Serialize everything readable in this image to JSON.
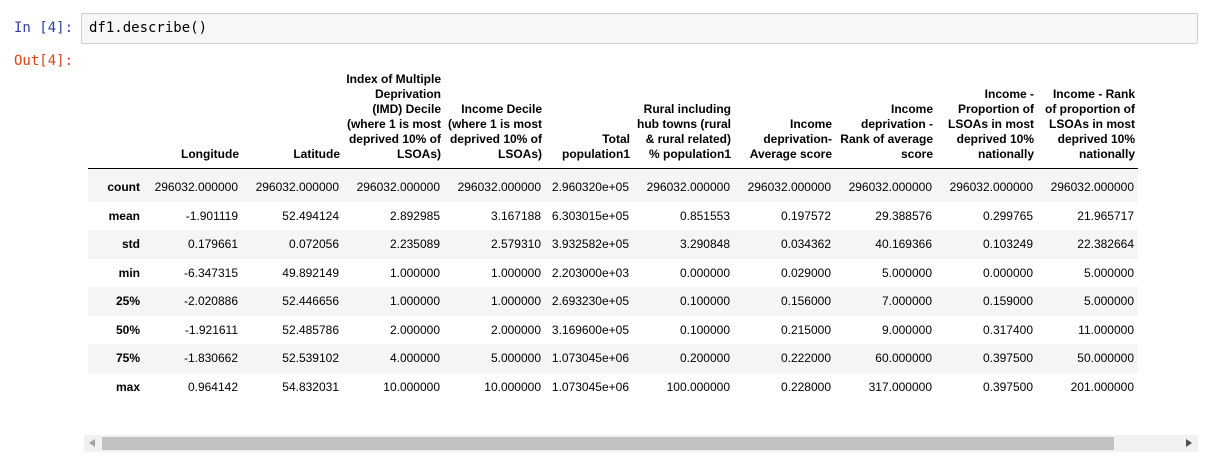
{
  "cell": {
    "in_prompt": "In [4]:",
    "out_prompt": "Out[4]:",
    "code": "df1.describe()"
  },
  "table": {
    "columns": [
      "Longitude",
      "Latitude",
      "Index of Multiple Deprivation (IMD) Decile (where 1 is most deprived 10% of LSOAs)",
      "Income Decile (where 1 is most deprived 10% of LSOAs)",
      "Total population1",
      "Rural including hub towns (rural & rural related) % population1",
      "Income deprivation-Average score",
      "Income deprivation - Rank of average score",
      "Income - Proportion of LSOAs in most deprived 10% nationally",
      "Income - Rank of proportion of LSOAs in most deprived 10% nationally"
    ],
    "rows": [
      {
        "label": "count",
        "values": [
          "296032.000000",
          "296032.000000",
          "296032.000000",
          "296032.000000",
          "2.960320e+05",
          "296032.000000",
          "296032.000000",
          "296032.000000",
          "296032.000000",
          "296032.000000"
        ]
      },
      {
        "label": "mean",
        "values": [
          "-1.901119",
          "52.494124",
          "2.892985",
          "3.167188",
          "6.303015e+05",
          "0.851553",
          "0.197572",
          "29.388576",
          "0.299765",
          "21.965717"
        ]
      },
      {
        "label": "std",
        "values": [
          "0.179661",
          "0.072056",
          "2.235089",
          "2.579310",
          "3.932582e+05",
          "3.290848",
          "0.034362",
          "40.169366",
          "0.103249",
          "22.382664"
        ]
      },
      {
        "label": "min",
        "values": [
          "-6.347315",
          "49.892149",
          "1.000000",
          "1.000000",
          "2.203000e+03",
          "0.000000",
          "0.029000",
          "5.000000",
          "0.000000",
          "5.000000"
        ]
      },
      {
        "label": "25%",
        "values": [
          "-2.020886",
          "52.446656",
          "1.000000",
          "1.000000",
          "2.693230e+05",
          "0.100000",
          "0.156000",
          "7.000000",
          "0.159000",
          "5.000000"
        ]
      },
      {
        "label": "50%",
        "values": [
          "-1.921611",
          "52.485786",
          "2.000000",
          "2.000000",
          "3.169600e+05",
          "0.100000",
          "0.215000",
          "9.000000",
          "0.317400",
          "11.000000"
        ]
      },
      {
        "label": "75%",
        "values": [
          "-1.830662",
          "52.539102",
          "4.000000",
          "5.000000",
          "1.073045e+06",
          "0.200000",
          "0.222000",
          "60.000000",
          "0.397500",
          "50.000000"
        ]
      },
      {
        "label": "max",
        "values": [
          "0.964142",
          "54.832031",
          "10.000000",
          "10.000000",
          "1.073045e+06",
          "100.000000",
          "0.228000",
          "317.000000",
          "0.397500",
          "201.000000"
        ]
      }
    ]
  },
  "scrollbar": {
    "left_icon": "triangle-left-icon",
    "right_icon": "triangle-right-icon"
  },
  "colors": {
    "in_prompt": "#303f9f",
    "out_prompt": "#d84315",
    "input_bg": "#f7f7f7",
    "stripe": "#f5f5f5"
  }
}
